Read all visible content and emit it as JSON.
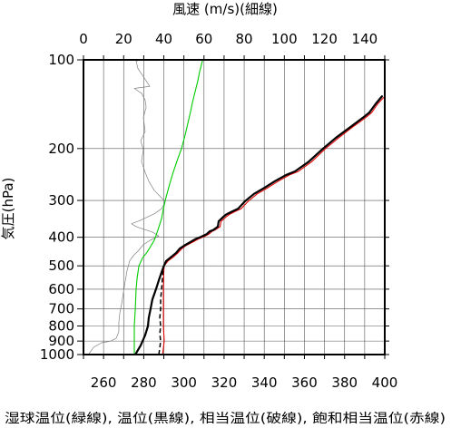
{
  "chart_data": {
    "type": "line",
    "x_top_label": "風速 (m/s)(細線)",
    "ylabel": "気圧(hPa)",
    "xlabel": "湿球温位(緑線), 温位(黒線), 相当温位(破線), 飽和相当温位(赤線)",
    "x_range": [
      250,
      400
    ],
    "x_ticks": [
      260,
      280,
      300,
      320,
      340,
      360,
      380,
      400
    ],
    "x_top_range": [
      0,
      150
    ],
    "x_top_ticks": [
      0,
      20,
      40,
      60,
      80,
      100,
      120,
      140
    ],
    "y_range": [
      100,
      1000
    ],
    "y_scale": "log",
    "y_inverted": true,
    "y_ticks": [
      100,
      200,
      300,
      400,
      500,
      600,
      700,
      800,
      900,
      1000
    ],
    "grid": true,
    "grid_x_step": 10,
    "series": [
      {
        "axis": "top",
        "color": "#808080",
        "style": "solid",
        "weight": "thin",
        "pressure": [
          1000,
          945,
          912,
          900,
          880,
          837,
          775,
          722,
          673,
          614,
          563,
          518,
          481,
          462,
          446,
          424,
          410,
          396,
          384,
          368,
          360,
          350,
          333,
          320,
          304,
          294,
          277,
          258,
          241,
          221,
          202,
          188,
          175,
          157,
          145,
          137,
          130,
          125,
          123,
          114,
          107,
          101,
          100
        ],
        "values": [
          2.5,
          5.0,
          9.0,
          13.6,
          16.3,
          17.6,
          17.6,
          18.1,
          19.0,
          19.9,
          20.8,
          21.7,
          23.0,
          24.8,
          27.1,
          29.8,
          33.0,
          37.5,
          34.3,
          26.2,
          23.9,
          28.5,
          35.2,
          38.9,
          40.7,
          38.9,
          35.2,
          32.5,
          30.7,
          28.9,
          29.8,
          28.5,
          30.7,
          29.8,
          31.2,
          30.7,
          29.0,
          25.3,
          33.0,
          29.8,
          27.1,
          26.2,
          28.0
        ]
      },
      {
        "axis": "bottom",
        "color": "#00cc00",
        "style": "solid",
        "weight": "normal",
        "pressure": [
          1000,
          900,
          800,
          700,
          600,
          550,
          500,
          470,
          450,
          430,
          410,
          395,
          370,
          345,
          320,
          300,
          270,
          245,
          220,
          200,
          180,
          165,
          150,
          140,
          128,
          118,
          110,
          104,
          101
        ],
        "values": [
          275.3,
          275.3,
          275.3,
          275.8,
          276.2,
          276.7,
          277.6,
          279.4,
          281.6,
          283.4,
          285.2,
          286.1,
          287.5,
          288.9,
          289.8,
          290.7,
          292.5,
          294.3,
          296.6,
          298.8,
          300.6,
          301.9,
          303.3,
          304.2,
          305.6,
          306.9,
          307.8,
          308.7,
          309.2
        ]
      },
      {
        "axis": "bottom",
        "color": "#e00000",
        "style": "solid",
        "weight": "normal",
        "pressure": [
          1000,
          950,
          900,
          850,
          800,
          700,
          600,
          520,
          500,
          482,
          468,
          452,
          437,
          427,
          415,
          406,
          398,
          390,
          382,
          378,
          368,
          353,
          341,
          335,
          327,
          320,
          302,
          285,
          271,
          258,
          246,
          239,
          222,
          200,
          184,
          170,
          157,
          151,
          141,
          133
        ],
        "values": [
          289.4,
          289.8,
          290.2,
          290.0,
          289.8,
          289.8,
          289.8,
          290.0,
          290.2,
          292.0,
          294.5,
          297.0,
          299.0,
          301.0,
          304.5,
          307.0,
          310.0,
          312.5,
          314.0,
          315.5,
          318.0,
          318.5,
          321.0,
          322.5,
          325.5,
          328.5,
          332.0,
          336.5,
          342.0,
          347.0,
          352.5,
          357.0,
          363.5,
          370.5,
          377.0,
          383.5,
          390.5,
          393.5,
          396.5,
          400.0
        ]
      },
      {
        "axis": "bottom",
        "color": "#000000",
        "style": "dashed",
        "weight": "medium",
        "pressure": [
          1000,
          950,
          900,
          850,
          800,
          750,
          700,
          650,
          600,
          550,
          510,
          500
        ],
        "values": [
          287.5,
          288.0,
          288.4,
          288.0,
          288.4,
          288.0,
          288.4,
          288.4,
          288.9,
          289.3,
          289.8,
          289.8
        ]
      },
      {
        "axis": "bottom",
        "color": "#000000",
        "style": "solid",
        "weight": "thick",
        "pressure": [
          1000,
          930,
          860,
          800,
          750,
          700,
          650,
          600,
          560,
          525,
          505,
          482,
          468,
          452,
          437,
          427,
          415,
          406,
          398,
          390,
          382,
          378,
          368,
          353,
          341,
          335,
          327,
          320,
          302,
          285,
          271,
          258,
          246,
          239,
          222,
          200,
          184,
          170,
          157,
          151,
          141,
          133
        ],
        "values": [
          275.8,
          278.5,
          280.7,
          282.1,
          282.5,
          283.4,
          284.3,
          286.1,
          287.5,
          288.9,
          289.8,
          291.1,
          293.4,
          296.1,
          297.9,
          300.1,
          303.3,
          305.6,
          308.7,
          311.4,
          312.8,
          314.6,
          316.9,
          317.3,
          319.6,
          321.0,
          324.0,
          327.0,
          330.4,
          334.9,
          340.4,
          345.3,
          350.8,
          355.3,
          362.0,
          369.3,
          375.6,
          382.4,
          389.2,
          392.3,
          395.5,
          398.6
        ]
      }
    ]
  }
}
